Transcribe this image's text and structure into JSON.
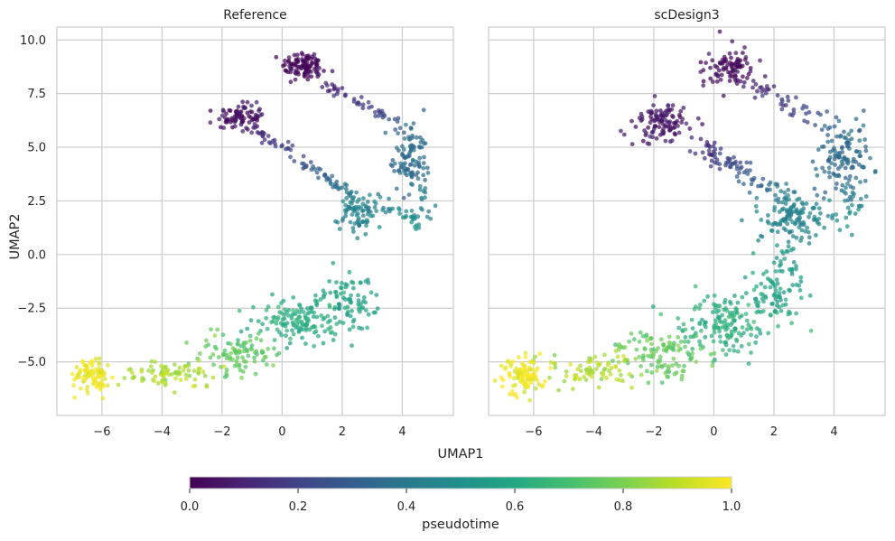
{
  "chart_data": {
    "type": "scatter",
    "xlabel": "UMAP1",
    "ylabel": "UMAP2",
    "xlim": [
      -7.5,
      5.7
    ],
    "ylim": [
      -7.5,
      10.6
    ],
    "xticks": [
      -6,
      -4,
      -2,
      0,
      2,
      4
    ],
    "yticks": [
      -5.0,
      -2.5,
      0.0,
      2.5,
      5.0,
      7.5,
      10.0
    ],
    "grid": true,
    "colorscale": "viridis",
    "colorbar": {
      "label": "pseudotime",
      "range": [
        0.0,
        1.0
      ],
      "ticks": [
        "0.0",
        "0.2",
        "0.4",
        "0.6",
        "0.8",
        "1.0"
      ],
      "placement": "bottom"
    },
    "panels": [
      {
        "title": "Reference",
        "clusters": [
          {
            "cx": 0.7,
            "cy": 8.8,
            "sx": 0.35,
            "sy": 0.35,
            "t": 0.02,
            "n": 100
          },
          {
            "cx": -1.4,
            "cy": 6.4,
            "sx": 0.4,
            "sy": 0.3,
            "t": 0.05,
            "n": 85
          },
          {
            "cx": 4.3,
            "cy": 4.5,
            "sx": 0.3,
            "sy": 0.8,
            "t": 0.35,
            "n": 100
          },
          {
            "cx": 2.5,
            "cy": 2.0,
            "sx": 0.35,
            "sy": 0.45,
            "t": 0.45,
            "n": 80
          },
          {
            "cx": 2.3,
            "cy": -2.2,
            "sx": 0.4,
            "sy": 0.6,
            "t": 0.58,
            "n": 60
          },
          {
            "cx": 0.5,
            "cy": -3.3,
            "sx": 0.8,
            "sy": 0.6,
            "t": 0.62,
            "n": 120
          },
          {
            "cx": -1.4,
            "cy": -4.6,
            "sx": 0.7,
            "sy": 0.5,
            "t": 0.75,
            "n": 90
          },
          {
            "cx": -3.8,
            "cy": -5.6,
            "sx": 0.9,
            "sy": 0.3,
            "t": 0.88,
            "n": 80
          },
          {
            "cx": -6.3,
            "cy": -5.6,
            "sx": 0.3,
            "sy": 0.45,
            "t": 0.98,
            "n": 90
          }
        ],
        "paths": [
          {
            "x0": 1.0,
            "y0": 8.3,
            "x1": 4.2,
            "y1": 5.8,
            "t0": 0.05,
            "t1": 0.3,
            "n": 50,
            "w": 0.15
          },
          {
            "x0": -0.9,
            "y0": 5.8,
            "x1": 2.3,
            "y1": 2.8,
            "t0": 0.1,
            "t1": 0.4,
            "n": 70,
            "w": 0.15
          },
          {
            "x0": 2.8,
            "y0": 2.3,
            "x1": 4.5,
            "y1": 1.8,
            "t0": 0.42,
            "t1": 0.5,
            "n": 25,
            "w": 0.15
          },
          {
            "x0": 4.5,
            "y0": 1.9,
            "x1": 4.4,
            "y1": 1.0,
            "t0": 0.48,
            "t1": 0.55,
            "n": 12,
            "w": 0.1
          },
          {
            "x0": 4.6,
            "y0": 3.0,
            "x1": 4.8,
            "y1": 2.0,
            "t0": 0.4,
            "t1": 0.45,
            "n": 12,
            "w": 0.15
          },
          {
            "x0": 2.6,
            "y0": -1.2,
            "x1": 0.0,
            "y1": -3.0,
            "t0": 0.56,
            "t1": 0.62,
            "n": 40,
            "w": 0.3
          }
        ]
      },
      {
        "title": "scDesign3",
        "clusters": [
          {
            "cx": 0.6,
            "cy": 8.7,
            "sx": 0.45,
            "sy": 0.45,
            "t": 0.03,
            "n": 90
          },
          {
            "cx": -1.7,
            "cy": 6.1,
            "sx": 0.5,
            "sy": 0.45,
            "t": 0.06,
            "n": 110
          },
          {
            "cx": 4.3,
            "cy": 4.4,
            "sx": 0.45,
            "sy": 0.9,
            "t": 0.35,
            "n": 120
          },
          {
            "cx": 2.5,
            "cy": 1.8,
            "sx": 0.5,
            "sy": 0.65,
            "t": 0.45,
            "n": 110
          },
          {
            "cx": 2.0,
            "cy": -1.8,
            "sx": 0.45,
            "sy": 0.6,
            "t": 0.58,
            "n": 70
          },
          {
            "cx": 0.4,
            "cy": -3.3,
            "sx": 0.9,
            "sy": 0.7,
            "t": 0.63,
            "n": 160
          },
          {
            "cx": -1.7,
            "cy": -4.7,
            "sx": 0.8,
            "sy": 0.55,
            "t": 0.76,
            "n": 110
          },
          {
            "cx": -4.0,
            "cy": -5.4,
            "sx": 0.9,
            "sy": 0.4,
            "t": 0.88,
            "n": 80
          },
          {
            "cx": -6.3,
            "cy": -5.7,
            "sx": 0.3,
            "sy": 0.45,
            "t": 0.98,
            "n": 100
          }
        ],
        "paths": [
          {
            "x0": 1.2,
            "y0": 7.9,
            "x1": 4.0,
            "y1": 6.0,
            "t0": 0.08,
            "t1": 0.3,
            "n": 45,
            "w": 0.25
          },
          {
            "x0": -0.5,
            "y0": 5.0,
            "x1": 2.5,
            "y1": 2.6,
            "t0": 0.12,
            "t1": 0.42,
            "n": 85,
            "w": 0.25
          },
          {
            "x0": 3.0,
            "y0": 2.0,
            "x1": 4.5,
            "y1": 1.5,
            "t0": 0.44,
            "t1": 0.5,
            "n": 25,
            "w": 0.3
          },
          {
            "x0": 4.6,
            "y0": 3.2,
            "x1": 4.8,
            "y1": 2.2,
            "t0": 0.4,
            "t1": 0.46,
            "n": 15,
            "w": 0.2
          },
          {
            "x0": 2.4,
            "y0": 0.8,
            "x1": 2.0,
            "y1": -0.8,
            "t0": 0.5,
            "t1": 0.56,
            "n": 15,
            "w": 0.2
          },
          {
            "x0": 2.8,
            "y0": -0.2,
            "x1": 2.4,
            "y1": -0.9,
            "t0": 0.5,
            "t1": 0.55,
            "n": 8,
            "w": 0.15
          }
        ]
      }
    ]
  }
}
